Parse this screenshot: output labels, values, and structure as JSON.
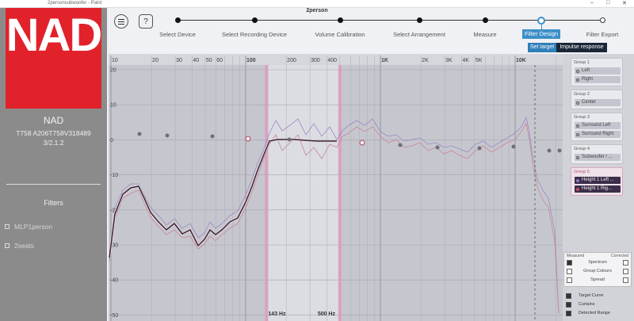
{
  "window": {
    "title": "2personsubwoofer - Paint"
  },
  "header": {
    "title": "2person",
    "help": "?",
    "steps": [
      "Select Device",
      "Select Recording Device",
      "Volume Calibration",
      "Select Arrangement",
      "Measure",
      "Filter Design",
      "Filter Export"
    ]
  },
  "buttons": [
    "Set target",
    "Impulse response"
  ],
  "device": {
    "logo": "NAD",
    "name": "NAD",
    "model": "T758 A206T758V318489",
    "version": "3/2.1.2"
  },
  "filters": {
    "title": "Filters",
    "items": [
      "MLP1person",
      "2seats"
    ]
  },
  "chart": {
    "x_labels": [
      "10",
      "20",
      "30",
      "40",
      "50",
      "60",
      "100",
      "200",
      "300",
      "400",
      "1K",
      "2K",
      "3K",
      "4K",
      "5K",
      "10K"
    ],
    "y_labels": [
      "20",
      "10",
      "0",
      "-10",
      "-20",
      "-30",
      "-40",
      "-50"
    ],
    "curtains": [
      "143 Hz",
      "500 Hz"
    ]
  },
  "groups": [
    {
      "title": "Group 1",
      "items": [
        "Left",
        "Right"
      ]
    },
    {
      "title": "Group 2",
      "items": [
        "Center"
      ]
    },
    {
      "title": "Group 3",
      "items": [
        "Surround Left",
        "Surround Right"
      ]
    },
    {
      "title": "Group 4",
      "items": [
        "Subwoofer / ..."
      ]
    },
    {
      "title": "Group 5",
      "items": [
        "Height 1 Left ...",
        "Height 1 Rig..."
      ]
    }
  ],
  "display": {
    "columns": [
      "Measured",
      "Corrected"
    ],
    "rows": [
      "Spectrum",
      "Group Colours",
      "Spread"
    ],
    "options": [
      "Target Curve",
      "Curtains",
      "Detected Range"
    ]
  }
}
